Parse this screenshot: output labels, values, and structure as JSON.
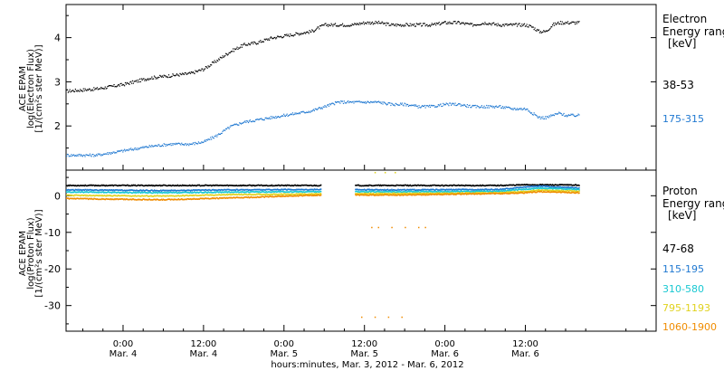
{
  "x_axis": {
    "ticks": [
      {
        "time": "0:00",
        "date": "Mar. 4",
        "hours": 24
      },
      {
        "time": "12:00",
        "date": "Mar. 4",
        "hours": 36
      },
      {
        "time": "0:00",
        "date": "Mar. 5",
        "hours": 48
      },
      {
        "time": "12:00",
        "date": "Mar. 5",
        "hours": 60
      },
      {
        "time": "0:00",
        "date": "Mar. 6",
        "hours": 72
      },
      {
        "time": "12:00",
        "date": "Mar. 6",
        "hours": 84
      }
    ],
    "title": "hours:minutes, Mar.  3, 2012 - Mar.  6, 2012",
    "range_hours": [
      15.5,
      103.5
    ]
  },
  "electron_panel": {
    "ylabel_lines": [
      "ACE EPAM",
      "log(Electron Flux)",
      "[1/(cm²s ster MeV)]"
    ],
    "legend_title": [
      "Electron",
      "Energy ranges",
      "[keV]"
    ],
    "ylim": [
      1.0,
      4.75
    ],
    "yticks": [
      2,
      3,
      4
    ]
  },
  "proton_panel": {
    "ylabel_lines": [
      "ACE EPAM",
      "log(Proton Flux)",
      "[1/(cm²s ster MeV)]"
    ],
    "legend_title": [
      "Proton",
      "Energy ranges",
      "[keV]"
    ],
    "ylim": [
      -37,
      7
    ],
    "yticks": [
      0,
      -10,
      -20,
      -30
    ]
  },
  "chart_data": [
    {
      "type": "scatter",
      "panel": "electron",
      "series": [
        {
          "name": "38-53",
          "color": "#000000",
          "x": [
            15.5,
            20,
            24,
            28,
            31,
            34,
            36,
            38,
            40,
            42,
            44,
            46,
            48,
            50,
            52,
            54,
            56,
            58,
            60,
            62,
            64,
            66,
            68,
            70,
            72,
            74,
            76,
            78,
            80,
            82,
            84,
            85,
            86,
            87,
            88,
            89,
            90,
            91,
            92
          ],
          "y": [
            2.8,
            2.85,
            2.95,
            3.1,
            3.15,
            3.2,
            3.3,
            3.5,
            3.7,
            3.85,
            3.9,
            4.0,
            4.05,
            4.1,
            4.15,
            4.3,
            4.3,
            4.3,
            4.35,
            4.35,
            4.3,
            4.3,
            4.3,
            4.3,
            4.35,
            4.35,
            4.3,
            4.35,
            4.3,
            4.3,
            4.3,
            4.25,
            4.15,
            4.15,
            4.3,
            4.35,
            4.35,
            4.35,
            4.35
          ]
        },
        {
          "name": "175-315",
          "color": "#1f78d1",
          "x": [
            15.5,
            20,
            24,
            28,
            31,
            34,
            36,
            38,
            40,
            42,
            44,
            46,
            48,
            50,
            52,
            54,
            56,
            58,
            60,
            62,
            64,
            66,
            68,
            70,
            72,
            74,
            76,
            78,
            80,
            82,
            84,
            85,
            86,
            87,
            88,
            89,
            90,
            91,
            92
          ],
          "y": [
            1.35,
            1.35,
            1.45,
            1.55,
            1.6,
            1.6,
            1.65,
            1.8,
            2.0,
            2.1,
            2.15,
            2.2,
            2.25,
            2.3,
            2.35,
            2.45,
            2.55,
            2.55,
            2.55,
            2.55,
            2.5,
            2.5,
            2.45,
            2.45,
            2.5,
            2.5,
            2.45,
            2.45,
            2.45,
            2.4,
            2.4,
            2.3,
            2.2,
            2.2,
            2.25,
            2.3,
            2.25,
            2.25,
            2.25
          ]
        }
      ]
    },
    {
      "type": "scatter",
      "panel": "proton",
      "series": [
        {
          "name": "47-68",
          "color": "#000000",
          "x": [
            15.5,
            30,
            45,
            58,
            66,
            75,
            80,
            84,
            86,
            92
          ],
          "y": [
            3.0,
            3.0,
            3.0,
            3.0,
            3.0,
            3.0,
            3.0,
            3.2,
            3.2,
            3.1
          ]
        },
        {
          "name": "115-195",
          "color": "#1f78d1",
          "x": [
            15.5,
            30,
            40,
            54,
            66,
            80,
            84,
            86,
            92
          ],
          "y": [
            1.8,
            1.6,
            1.8,
            1.9,
            1.8,
            1.9,
            2.6,
            2.8,
            2.3
          ]
        },
        {
          "name": "310-580",
          "color": "#19c8d2",
          "x": [
            15.5,
            30,
            40,
            54,
            66,
            80,
            84,
            86,
            92
          ],
          "y": [
            1.2,
            1.0,
            1.2,
            1.3,
            1.3,
            1.4,
            2.0,
            2.3,
            1.9
          ]
        },
        {
          "name": "795-1193",
          "color": "#e0d21e",
          "x": [
            15.5,
            30,
            40,
            54,
            66,
            80,
            84,
            86,
            92
          ],
          "y": [
            0.3,
            0.1,
            0.5,
            0.7,
            0.8,
            1.0,
            1.4,
            1.7,
            1.4
          ]
        },
        {
          "name": "1060-1900",
          "color": "#f08c00",
          "x": [
            15.5,
            30,
            40,
            54,
            66,
            80,
            84,
            86,
            92
          ],
          "y": [
            -0.6,
            -0.9,
            -0.4,
            0.4,
            0.4,
            0.8,
            1.0,
            1.3,
            1.0
          ]
        }
      ],
      "outliers": [
        {
          "series": "1060-1900",
          "x": [
            61,
            62,
            64,
            66,
            68,
            69,
            59.5,
            61.5,
            63.5,
            65.5
          ],
          "y": [
            -8.5,
            -8.5,
            -8.5,
            -8.5,
            -8.5,
            -8.5,
            -33,
            -33,
            -33,
            -33
          ]
        },
        {
          "series": "795-1193",
          "x": [
            61.5,
            63,
            64.5
          ],
          "y": [
            6.5,
            6.5,
            6.5
          ]
        }
      ]
    }
  ]
}
